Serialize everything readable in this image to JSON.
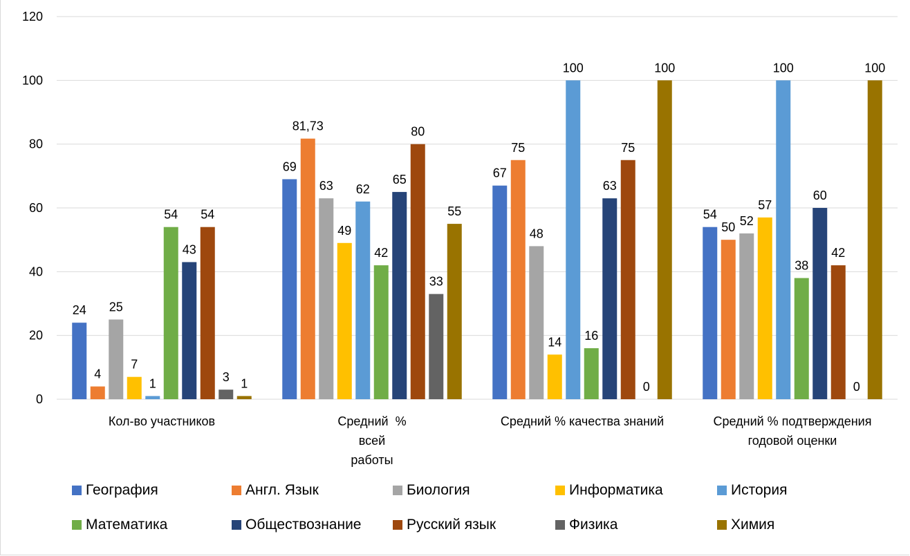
{
  "chart_data": {
    "type": "bar",
    "title": "",
    "xlabel": "",
    "ylabel": "",
    "ylim": [
      0,
      120
    ],
    "yticks": [
      0,
      20,
      40,
      60,
      80,
      100,
      120
    ],
    "grid": true,
    "legend_position": "bottom",
    "categories": [
      [
        "Кол-во участников"
      ],
      [
        "Средний  %",
        "всей",
        "работы"
      ],
      [
        "Средний % качества знаний"
      ],
      [
        "Средний % подтверждения",
        "годовой оценки"
      ]
    ],
    "series": [
      {
        "name": "География",
        "color": "#4472C4",
        "values": [
          24,
          69,
          67,
          54
        ],
        "labels": [
          "24",
          "69",
          "67",
          "54"
        ]
      },
      {
        "name": "Англ. Язык",
        "color": "#ED7D31",
        "values": [
          4,
          81.73,
          75,
          50
        ],
        "labels": [
          "4",
          "81,73",
          "75",
          "50"
        ]
      },
      {
        "name": "Биология",
        "color": "#A5A5A5",
        "values": [
          25,
          63,
          48,
          52
        ],
        "labels": [
          "25",
          "63",
          "48",
          "52"
        ]
      },
      {
        "name": "Информатика",
        "color": "#FFC000",
        "values": [
          7,
          49,
          14,
          57
        ],
        "labels": [
          "7",
          "49",
          "14",
          "57"
        ]
      },
      {
        "name": "История",
        "color": "#5B9BD5",
        "values": [
          1,
          62,
          100,
          100
        ],
        "labels": [
          "1",
          "62",
          "100",
          "100"
        ]
      },
      {
        "name": "Математика",
        "color": "#70AD47",
        "values": [
          54,
          42,
          16,
          38
        ],
        "labels": [
          "54",
          "42",
          "16",
          "38"
        ]
      },
      {
        "name": "Обществознание",
        "color": "#264478",
        "values": [
          43,
          65,
          63,
          60
        ],
        "labels": [
          "43",
          "65",
          "63",
          "60"
        ]
      },
      {
        "name": "Русский язык",
        "color": "#9E480E",
        "values": [
          54,
          80,
          75,
          42
        ],
        "labels": [
          "54",
          "80",
          "75",
          "42"
        ]
      },
      {
        "name": "Физика",
        "color": "#636363",
        "values": [
          3,
          33,
          0,
          0
        ],
        "labels": [
          "3",
          "33",
          "0",
          "0"
        ]
      },
      {
        "name": "Химия",
        "color": "#997300",
        "values": [
          1,
          55,
          100,
          100
        ],
        "labels": [
          "1",
          "55",
          "100",
          "100"
        ]
      }
    ]
  }
}
